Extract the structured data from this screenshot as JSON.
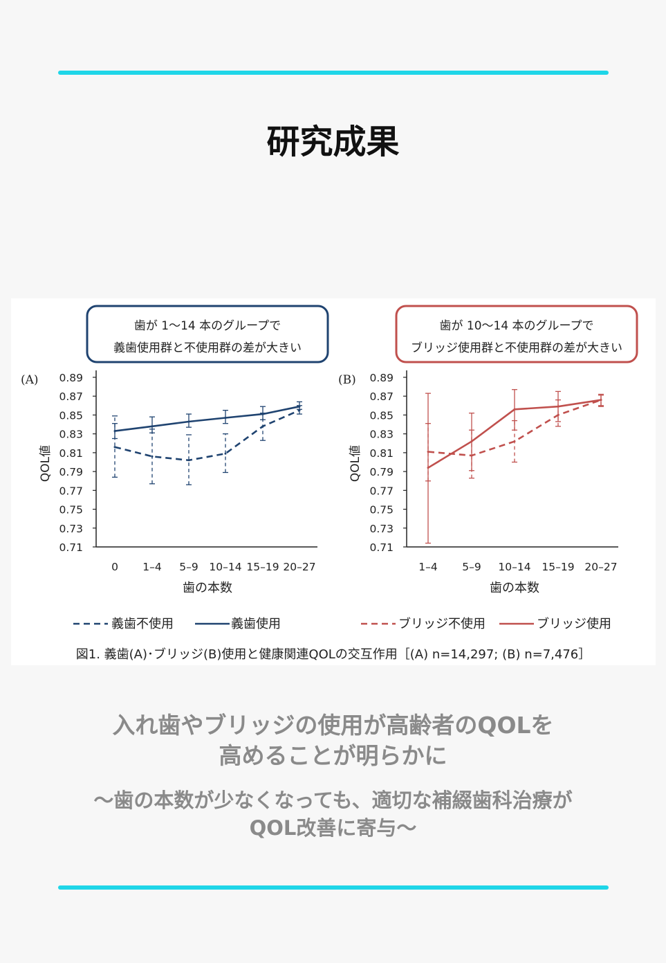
{
  "page_title": "研究成果",
  "colors": {
    "accent_rule": "#1fd6e8",
    "navy": "#1f4370",
    "red": "#c0504d",
    "text_gray": "#8a8a8a"
  },
  "chart_data": [
    {
      "type": "line",
      "panel": "(A)",
      "callout": [
        "歯が 1〜14 本のグループで",
        "義歯使用群と不使用群の差が大きい"
      ],
      "xlabel": "歯の本数",
      "ylabel": "QOL値",
      "categories": [
        "0",
        "1–4",
        "5–9",
        "10–14",
        "15–19",
        "20–27"
      ],
      "ylim": [
        0.71,
        0.89
      ],
      "yticks": [
        "0.89",
        "0.87",
        "0.85",
        "0.83",
        "0.81",
        "0.79",
        "0.77",
        "0.75",
        "0.73",
        "0.71"
      ],
      "series": [
        {
          "name": "義歯不使用",
          "style": "dashed",
          "color": "#1f4370",
          "values": [
            0.816,
            0.806,
            0.802,
            0.809,
            0.838,
            0.855
          ],
          "lower": [
            0.784,
            0.777,
            0.776,
            0.789,
            0.823,
            0.851
          ],
          "upper": [
            0.849,
            0.835,
            0.829,
            0.83,
            0.852,
            0.86
          ]
        },
        {
          "name": "義歯使用",
          "style": "solid",
          "color": "#1f4370",
          "values": [
            0.833,
            0.838,
            0.843,
            0.847,
            0.851,
            0.859
          ],
          "lower": [
            0.825,
            0.831,
            0.837,
            0.841,
            0.845,
            0.856
          ],
          "upper": [
            0.841,
            0.848,
            0.851,
            0.855,
            0.859,
            0.864
          ]
        }
      ]
    },
    {
      "type": "line",
      "panel": "(B)",
      "callout": [
        "歯が 10〜14 本のグループで",
        "ブリッジ使用群と不使用群の差が大きい"
      ],
      "xlabel": "歯の本数",
      "ylabel": "QOL値",
      "categories": [
        "1–4",
        "5–9",
        "10–14",
        "15–19",
        "20–27"
      ],
      "ylim": [
        0.71,
        0.89
      ],
      "yticks": [
        "0.89",
        "0.87",
        "0.85",
        "0.83",
        "0.81",
        "0.79",
        "0.77",
        "0.75",
        "0.73",
        "0.71"
      ],
      "series": [
        {
          "name": "ブリッジ不使用",
          "style": "dashed",
          "color": "#c0504d",
          "values": [
            0.811,
            0.807,
            0.822,
            0.85,
            0.866
          ],
          "lower": [
            0.78,
            0.783,
            0.8,
            0.838,
            0.86
          ],
          "upper": [
            0.841,
            0.834,
            0.844,
            0.866,
            0.871
          ]
        },
        {
          "name": "ブリッジ使用",
          "style": "solid",
          "color": "#c0504d",
          "values": [
            0.794,
            0.822,
            0.856,
            0.859,
            0.866
          ],
          "lower": [
            0.714,
            0.791,
            0.834,
            0.843,
            0.859
          ],
          "upper": [
            0.873,
            0.852,
            0.877,
            0.875,
            0.872
          ]
        }
      ]
    }
  ],
  "figure_caption": "図1. 義歯(A)･ブリッジ(B)使用と健康関連QOLの交互作用［(A) n=14,297; (B) n=7,476］",
  "headline": {
    "line1": "入れ歯やブリッジの使用が高齢者のQOLを",
    "line2": "高めることが明らかに"
  },
  "subheadline": {
    "line1": "〜歯の本数が少なくなっても、適切な補綴歯科治療が",
    "line2": "QOL改善に寄与〜"
  }
}
